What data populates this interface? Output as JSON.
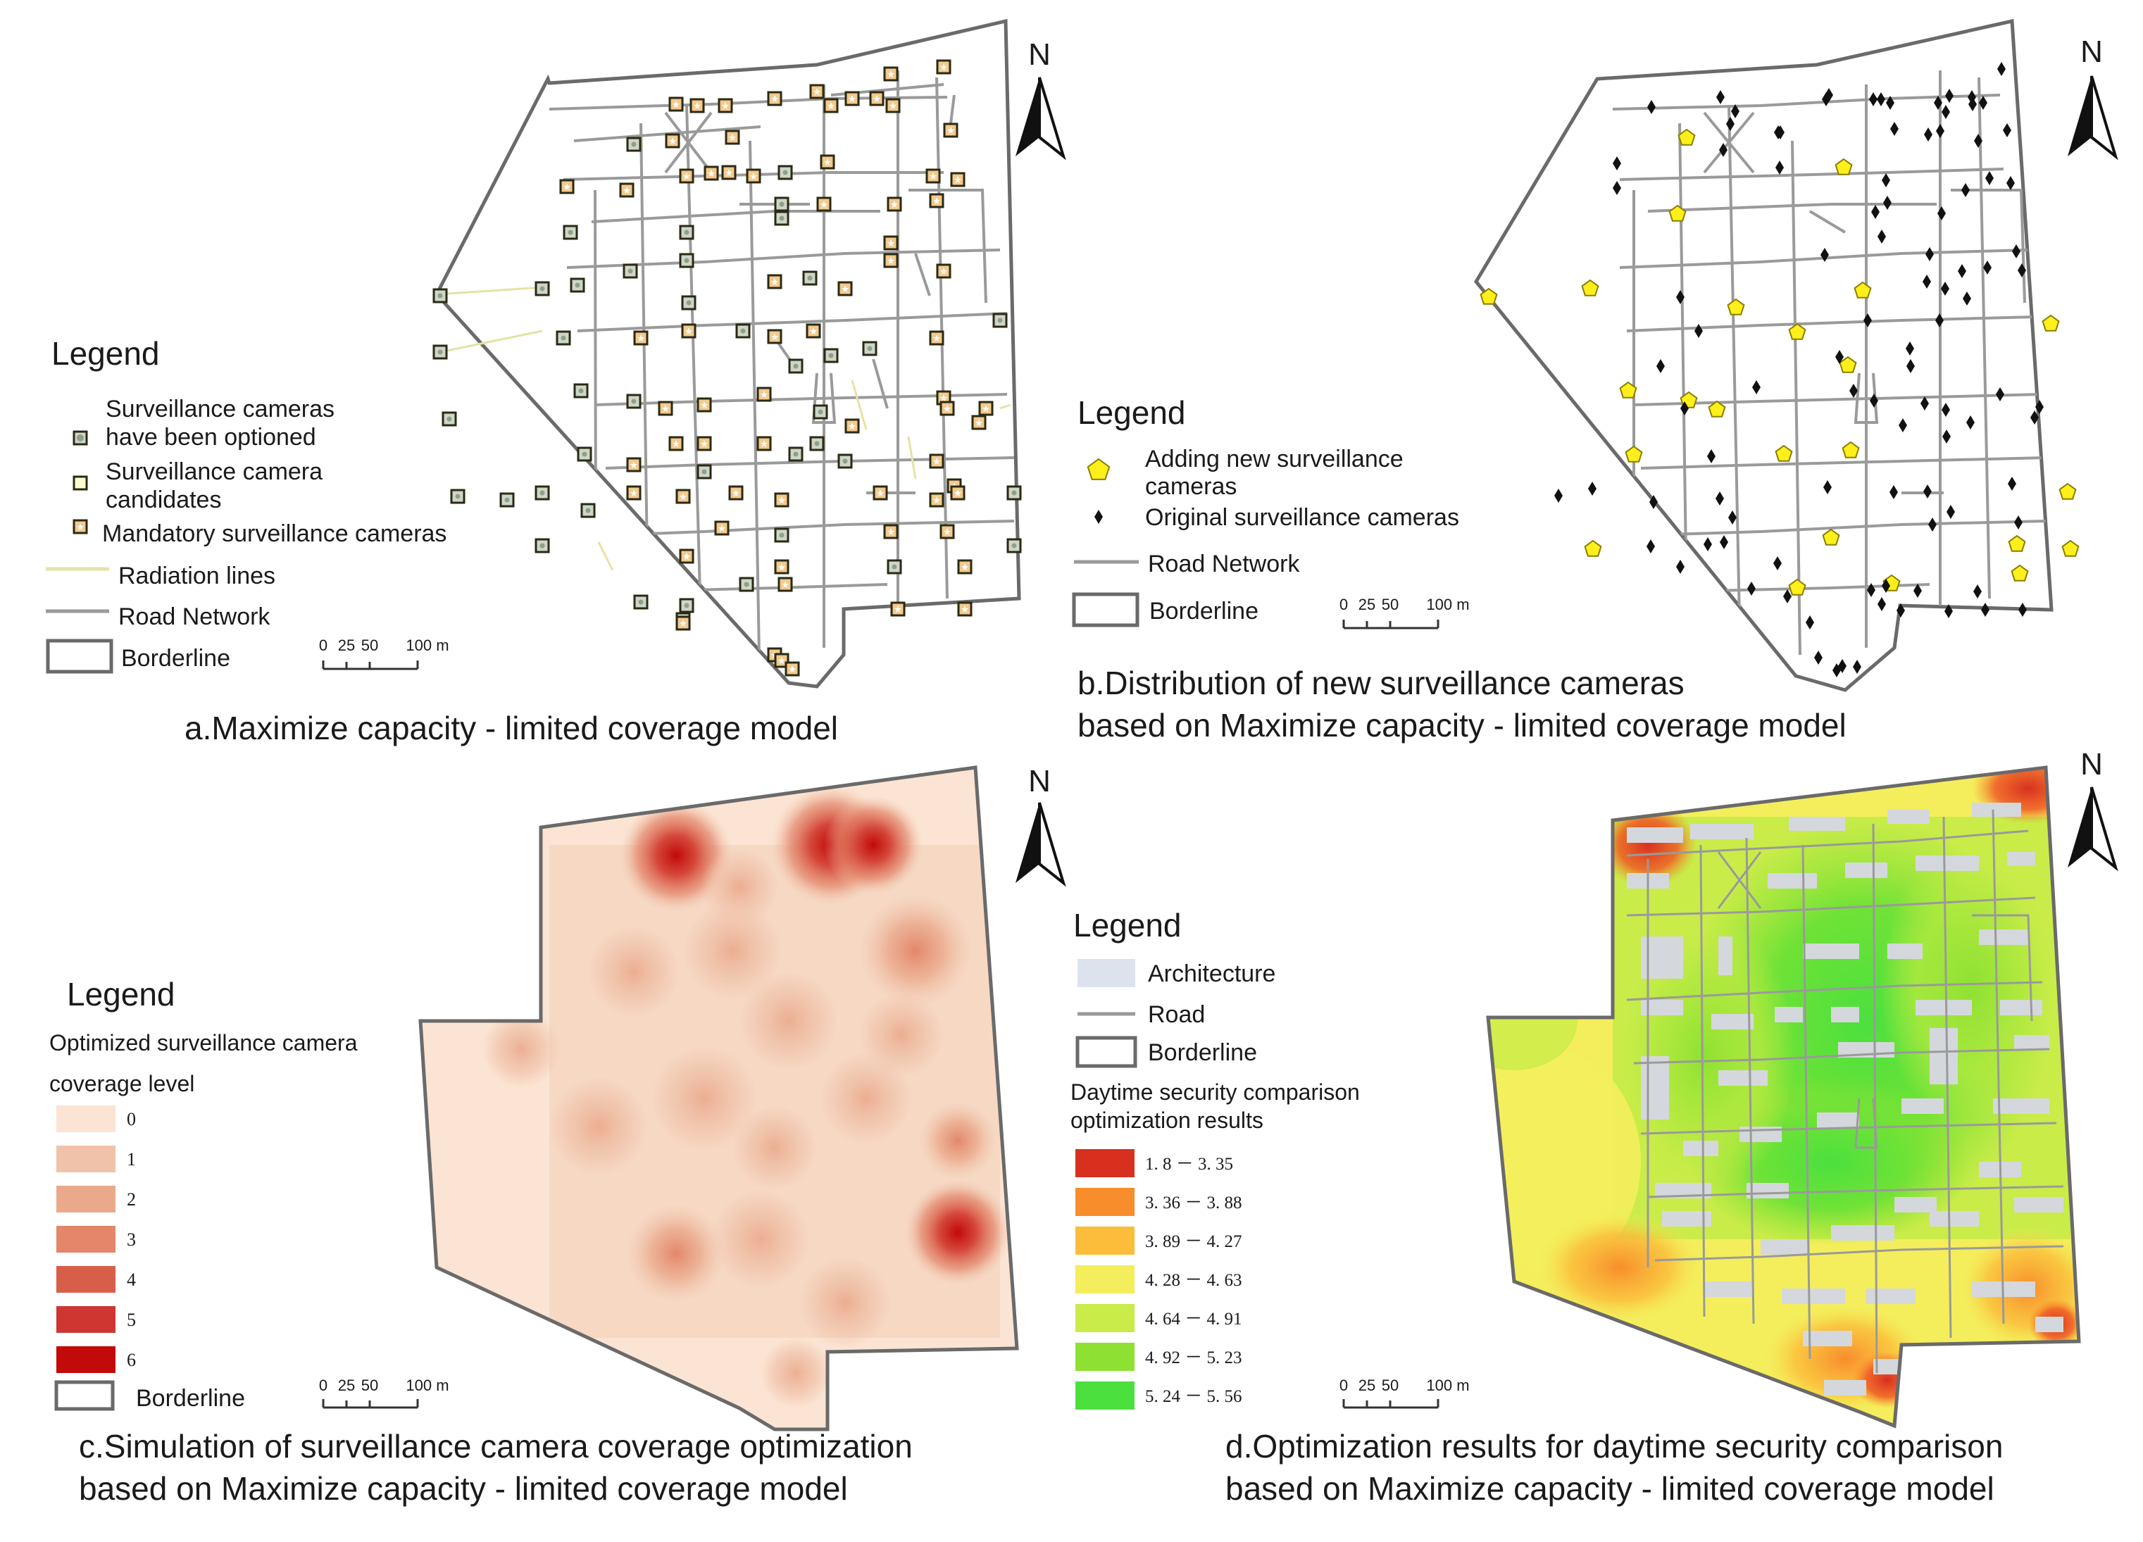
{
  "panels": {
    "a": {
      "caption": "a.Maximize capacity - limited coverage model",
      "legend": {
        "title": "Legend",
        "items": [
          {
            "icon": "optioned-camera-icon",
            "label_lines": [
              "Surveillance cameras",
              "have been optioned"
            ]
          },
          {
            "icon": "candidate-camera-icon",
            "label_lines": [
              "Surveillance camera",
              "candidates"
            ]
          },
          {
            "icon": "mandatory-camera-icon",
            "label_lines": [
              "Mandatory surveillance cameras"
            ]
          },
          {
            "icon": "radiation-line-icon",
            "label_lines": [
              "Radiation lines"
            ]
          },
          {
            "icon": "road-line-icon",
            "label_lines": [
              "Road Network"
            ]
          },
          {
            "icon": "border-box-icon",
            "label_lines": [
              "Borderline"
            ]
          }
        ]
      },
      "north": "N",
      "scale_labels": [
        "0",
        "25",
        "50",
        "100 m"
      ]
    },
    "b": {
      "caption_lines": [
        "b.Distribution of new surveillance cameras",
        "based on Maximize capacity - limited coverage model"
      ],
      "legend": {
        "title": "Legend",
        "items": [
          {
            "icon": "pentagon-icon",
            "label_lines": [
              "Adding new surveillance",
              " cameras"
            ]
          },
          {
            "icon": "diamond-icon",
            "label_lines": [
              "Original surveillance cameras"
            ]
          },
          {
            "icon": "road-line-icon",
            "label_lines": [
              "Road Network"
            ]
          },
          {
            "icon": "border-box-icon",
            "label_lines": [
              "Borderline"
            ]
          }
        ]
      },
      "north": "N",
      "scale_labels": [
        "0",
        "25",
        "50",
        "100 m"
      ]
    },
    "c": {
      "caption_lines": [
        "c.Simulation of surveillance camera coverage optimization",
        "based on Maximize capacity - limited coverage model"
      ],
      "legend": {
        "title": "Legend",
        "subtitle_lines": [
          "Optimized surveillance camera",
          "coverage level"
        ],
        "classes": [
          {
            "label": "0",
            "color": "#fbe4d3"
          },
          {
            "label": "1",
            "color": "#f0c2aa"
          },
          {
            "label": "2",
            "color": "#eaa98b"
          },
          {
            "label": "3",
            "color": "#e3866a"
          },
          {
            "label": "4",
            "color": "#d95e4a"
          },
          {
            "label": "5",
            "color": "#ce3731"
          },
          {
            "label": "6",
            "color": "#c20a0a"
          }
        ],
        "border_label": "Borderline"
      },
      "north": "N",
      "scale_labels": [
        "0",
        "25",
        "50",
        "100 m"
      ]
    },
    "d": {
      "caption_lines": [
        "d.Optimization results for daytime security comparison",
        "based on Maximize capacity - limited coverage model"
      ],
      "legend": {
        "title": "Legend",
        "items": [
          {
            "icon": "architecture-swatch-icon",
            "label": "Architecture",
            "color": "#dce3ec"
          },
          {
            "icon": "road-line-icon",
            "label": "Road"
          },
          {
            "icon": "border-box-icon",
            "label": "Borderline"
          }
        ],
        "subtitle_lines": [
          "Daytime security comparison",
          "optimization results"
        ],
        "classes": [
          {
            "label": "1. 8 － 3. 35",
            "color": "#d7301f"
          },
          {
            "label": "3. 36 － 3. 88",
            "color": "#f88d2c"
          },
          {
            "label": "3. 89 － 4. 27",
            "color": "#fbbd3a"
          },
          {
            "label": "4. 28 － 4. 63",
            "color": "#f4ee5c"
          },
          {
            "label": "4. 64 － 4. 91",
            "color": "#c9ec49"
          },
          {
            "label": "4. 92 － 5. 23",
            "color": "#8ee132"
          },
          {
            "label": "5. 24 － 5. 56",
            "color": "#4ce03e"
          }
        ]
      },
      "north": "N",
      "scale_labels": [
        "0",
        "25",
        "50",
        "100 m"
      ]
    }
  },
  "colors": {
    "road": "#9a9a9a",
    "border": "#6a6a6a",
    "radiation": "#e4e3a4",
    "candidate_fill": "#fdfbd0",
    "candidate_stroke": "#2a2a14",
    "mandatory_fill": "#f4c98c",
    "optioned_fill": "#cfd6c8",
    "new_camera": "#ffef1a",
    "original_camera": "#111111",
    "building": "#d4d8dd"
  }
}
